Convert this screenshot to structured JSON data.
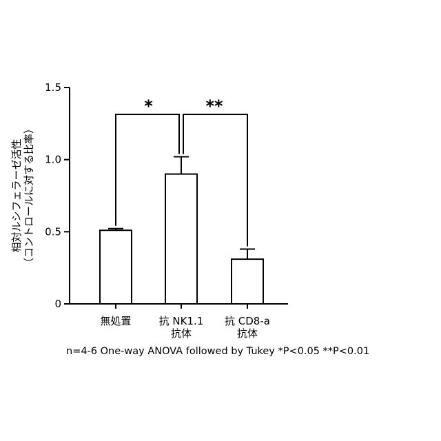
{
  "chart_data": {
    "type": "bar",
    "categories": [
      [
        "無処置"
      ],
      [
        "抗 NK1.1",
        "抗体"
      ],
      [
        "抗 CD8-a",
        "抗体"
      ]
    ],
    "values": [
      0.51,
      0.9,
      0.31
    ],
    "errors": [
      0.012,
      0.12,
      0.07
    ],
    "ylim": [
      0,
      1.5
    ],
    "yticks": [
      0,
      0.5,
      1.0,
      1.5
    ],
    "ytick_labels": [
      "0",
      "0.5",
      "1.0",
      "1.5"
    ],
    "ylabel": [
      "相対ルシフェラーゼ活性",
      "（コントロールに対する比率）"
    ],
    "bar_color": "#ffffff",
    "edge_color": "#000000",
    "significance": [
      {
        "from": 0,
        "to": 1,
        "label": "*"
      },
      {
        "from": 1,
        "to": 2,
        "label": "**"
      }
    ]
  },
  "footnote": "n=4-6 One-way ANOVA followed by Tukey *P<0.05 **P<0.01"
}
